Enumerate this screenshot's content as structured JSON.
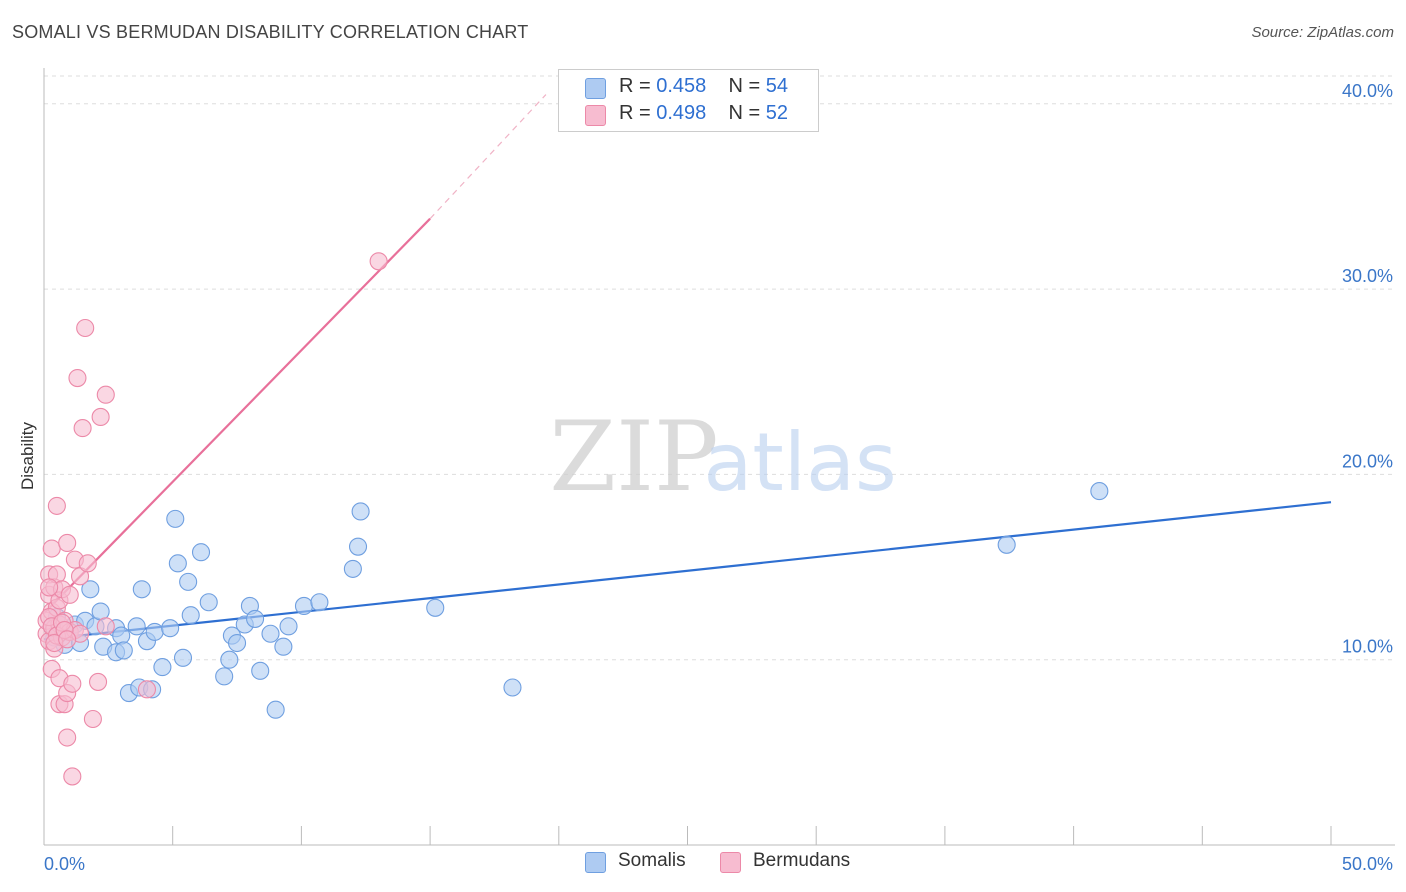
{
  "title": "SOMALI VS BERMUDAN DISABILITY CORRELATION CHART",
  "source": "Source: ZipAtlas.com",
  "watermark": {
    "zip": "ZIP",
    "atlas": "atlas"
  },
  "legend": {
    "rows": [
      {
        "r_label": "R = ",
        "r_value": "0.458",
        "n_label": "N = ",
        "n_value": "54"
      },
      {
        "r_label": "R = ",
        "r_value": "0.498",
        "n_label": "N = ",
        "n_value": "52"
      }
    ]
  },
  "bottom_legend": {
    "somalis": "Somalis",
    "bermudans": "Bermudans"
  },
  "colors": {
    "somali_fill": "#aecbf2",
    "somali_stroke": "#6f9fe0",
    "somali_line": "#2e6fd1",
    "bermudan_fill": "#f7bcd0",
    "bermudan_stroke": "#ec89a8",
    "bermudan_line": "#e8709a",
    "tick_label": "#3a76c8",
    "grid": "#dddddd"
  },
  "chart_data": {
    "type": "scatter",
    "title": "SOMALI VS BERMUDAN DISABILITY CORRELATION CHART",
    "xlabel": "",
    "ylabel": "Disability",
    "xlim": [
      0,
      50
    ],
    "ylim": [
      0,
      41.5
    ],
    "x_tick_labels": [
      {
        "value": 0,
        "label": "0.0%"
      },
      {
        "value": 50,
        "label": "50.0%"
      }
    ],
    "y_tick_labels": [
      {
        "value": 10,
        "label": "10.0%"
      },
      {
        "value": 20,
        "label": "20.0%"
      },
      {
        "value": 30,
        "label": "30.0%"
      },
      {
        "value": 40,
        "label": "40.0%"
      }
    ],
    "series": [
      {
        "name": "Somalis",
        "r": 0.458,
        "n": 54,
        "trendline": {
          "x": [
            0.0,
            50.0
          ],
          "y": [
            11.1,
            18.5
          ]
        },
        "points": [
          {
            "x": 0.3,
            "y": 11.8
          },
          {
            "x": 0.5,
            "y": 12.3
          },
          {
            "x": 0.6,
            "y": 11.4
          },
          {
            "x": 0.8,
            "y": 10.8
          },
          {
            "x": 1.0,
            "y": 11.5
          },
          {
            "x": 1.2,
            "y": 11.9
          },
          {
            "x": 1.4,
            "y": 10.9
          },
          {
            "x": 1.6,
            "y": 12.1
          },
          {
            "x": 1.8,
            "y": 13.8
          },
          {
            "x": 2.0,
            "y": 11.8
          },
          {
            "x": 2.2,
            "y": 12.6
          },
          {
            "x": 2.3,
            "y": 10.7
          },
          {
            "x": 2.8,
            "y": 11.7
          },
          {
            "x": 2.8,
            "y": 10.4
          },
          {
            "x": 3.0,
            "y": 11.3
          },
          {
            "x": 3.1,
            "y": 10.5
          },
          {
            "x": 3.3,
            "y": 8.2
          },
          {
            "x": 3.6,
            "y": 11.8
          },
          {
            "x": 3.7,
            "y": 8.5
          },
          {
            "x": 3.8,
            "y": 13.8
          },
          {
            "x": 4.0,
            "y": 11.0
          },
          {
            "x": 4.2,
            "y": 8.4
          },
          {
            "x": 4.3,
            "y": 11.5
          },
          {
            "x": 4.6,
            "y": 9.6
          },
          {
            "x": 4.9,
            "y": 11.7
          },
          {
            "x": 5.1,
            "y": 17.6
          },
          {
            "x": 5.2,
            "y": 15.2
          },
          {
            "x": 5.4,
            "y": 10.1
          },
          {
            "x": 5.6,
            "y": 14.2
          },
          {
            "x": 5.7,
            "y": 12.4
          },
          {
            "x": 6.1,
            "y": 15.8
          },
          {
            "x": 6.4,
            "y": 13.1
          },
          {
            "x": 7.0,
            "y": 9.1
          },
          {
            "x": 7.2,
            "y": 10.0
          },
          {
            "x": 7.3,
            "y": 11.3
          },
          {
            "x": 7.5,
            "y": 10.9
          },
          {
            "x": 7.8,
            "y": 11.9
          },
          {
            "x": 8.0,
            "y": 12.9
          },
          {
            "x": 8.2,
            "y": 12.2
          },
          {
            "x": 8.4,
            "y": 9.4
          },
          {
            "x": 8.8,
            "y": 11.4
          },
          {
            "x": 9.0,
            "y": 7.3
          },
          {
            "x": 9.3,
            "y": 10.7
          },
          {
            "x": 9.5,
            "y": 11.8
          },
          {
            "x": 10.1,
            "y": 12.9
          },
          {
            "x": 10.7,
            "y": 13.1
          },
          {
            "x": 12.0,
            "y": 14.9
          },
          {
            "x": 12.2,
            "y": 16.1
          },
          {
            "x": 12.3,
            "y": 18.0
          },
          {
            "x": 15.2,
            "y": 12.8
          },
          {
            "x": 18.2,
            "y": 8.5
          },
          {
            "x": 37.4,
            "y": 16.2
          },
          {
            "x": 41.0,
            "y": 19.1
          },
          {
            "x": 0.4,
            "y": 11.2
          }
        ]
      },
      {
        "name": "Bermudans",
        "r": 0.498,
        "n": 52,
        "trendline": {
          "x": [
            0.0,
            15.0
          ],
          "y": [
            12.5,
            33.8
          ]
        },
        "trendline_dashed": {
          "x": [
            15.0,
            19.5
          ],
          "y": [
            33.8,
            40.5
          ]
        },
        "points": [
          {
            "x": 0.1,
            "y": 11.4
          },
          {
            "x": 0.1,
            "y": 12.1
          },
          {
            "x": 0.2,
            "y": 14.6
          },
          {
            "x": 0.2,
            "y": 13.5
          },
          {
            "x": 0.2,
            "y": 11.0
          },
          {
            "x": 0.3,
            "y": 16.0
          },
          {
            "x": 0.3,
            "y": 9.5
          },
          {
            "x": 0.3,
            "y": 12.6
          },
          {
            "x": 0.4,
            "y": 13.9
          },
          {
            "x": 0.4,
            "y": 11.7
          },
          {
            "x": 0.4,
            "y": 10.6
          },
          {
            "x": 0.5,
            "y": 14.6
          },
          {
            "x": 0.5,
            "y": 12.8
          },
          {
            "x": 0.5,
            "y": 18.3
          },
          {
            "x": 0.6,
            "y": 13.2
          },
          {
            "x": 0.6,
            "y": 11.9
          },
          {
            "x": 0.6,
            "y": 9.0
          },
          {
            "x": 0.6,
            "y": 7.6
          },
          {
            "x": 0.7,
            "y": 13.8
          },
          {
            "x": 0.7,
            "y": 11.2
          },
          {
            "x": 0.8,
            "y": 7.6
          },
          {
            "x": 0.8,
            "y": 12.1
          },
          {
            "x": 0.9,
            "y": 16.3
          },
          {
            "x": 0.9,
            "y": 5.8
          },
          {
            "x": 0.9,
            "y": 8.2
          },
          {
            "x": 1.0,
            "y": 11.5
          },
          {
            "x": 1.0,
            "y": 13.5
          },
          {
            "x": 1.1,
            "y": 8.7
          },
          {
            "x": 1.1,
            "y": 3.7
          },
          {
            "x": 1.2,
            "y": 15.4
          },
          {
            "x": 1.2,
            "y": 11.6
          },
          {
            "x": 1.3,
            "y": 25.2
          },
          {
            "x": 1.4,
            "y": 11.4
          },
          {
            "x": 1.4,
            "y": 14.5
          },
          {
            "x": 1.5,
            "y": 22.5
          },
          {
            "x": 1.6,
            "y": 27.9
          },
          {
            "x": 1.7,
            "y": 15.2
          },
          {
            "x": 1.9,
            "y": 6.8
          },
          {
            "x": 2.1,
            "y": 8.8
          },
          {
            "x": 2.2,
            "y": 23.1
          },
          {
            "x": 2.4,
            "y": 24.3
          },
          {
            "x": 2.4,
            "y": 11.8
          },
          {
            "x": 4.0,
            "y": 8.4
          },
          {
            "x": 13.0,
            "y": 31.5
          },
          {
            "x": 0.2,
            "y": 12.3
          },
          {
            "x": 0.3,
            "y": 11.8
          },
          {
            "x": 0.5,
            "y": 11.3
          },
          {
            "x": 0.7,
            "y": 12.0
          },
          {
            "x": 0.8,
            "y": 11.6
          },
          {
            "x": 0.4,
            "y": 10.9
          },
          {
            "x": 0.9,
            "y": 11.1
          },
          {
            "x": 0.2,
            "y": 13.9
          }
        ]
      }
    ]
  }
}
